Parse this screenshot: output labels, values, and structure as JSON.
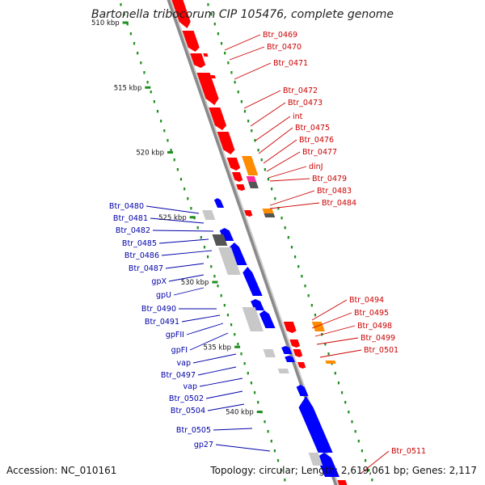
{
  "title": "Bartonella tribocorum CIP 105476, complete genome",
  "accession": "Accession: NC_010161",
  "summary": "Topology: circular; Length: 2,619,061 bp; Genes: 2,117",
  "colors": {
    "forward": "#ff0000",
    "reverse": "#0000ff",
    "forward_label": "#cc0000",
    "reverse_label": "#0000aa",
    "orange": "#ff8c00",
    "magenta": "#ff2a9a",
    "backbone": "#8a8a8a",
    "ruler": "#1f8f1f",
    "gray_light": "#c8c8c8",
    "gray_dark": "#555555"
  },
  "ticks": [
    {
      "kbp": 510,
      "label": "510 kbp"
    },
    {
      "kbp": 515,
      "label": "515 kbp"
    },
    {
      "kbp": 520,
      "label": "520 kbp"
    },
    {
      "kbp": 525,
      "label": "525 kbp"
    },
    {
      "kbp": 530,
      "label": "530 kbp"
    },
    {
      "kbp": 535,
      "label": "535 kbp"
    },
    {
      "kbp": 540,
      "label": "540 kbp"
    }
  ],
  "forward_labels": [
    "Btr_0469",
    "Btr_0470",
    "Btr_0471",
    "Btr_0472",
    "Btr_0473",
    "int",
    "Btr_0475",
    "Btr_0476",
    "Btr_0477",
    "dinJ",
    "Btr_0479",
    "Btr_0483",
    "Btr_0484",
    "Btr_0494",
    "Btr_0495",
    "Btr_0498",
    "Btr_0499",
    "Btr_0501",
    "Btr_0511"
  ],
  "reverse_labels": [
    "Btr_0480",
    "Btr_0481",
    "Btr_0482",
    "Btr_0485",
    "Btr_0486",
    "Btr_0487",
    "gpX",
    "gpU",
    "Btr_0490",
    "Btr_0491",
    "gpFII",
    "gpFI",
    "vap",
    "Btr_0497",
    "vap",
    "Btr_0502",
    "Btr_0504",
    "Btr_0505",
    "gp27"
  ]
}
